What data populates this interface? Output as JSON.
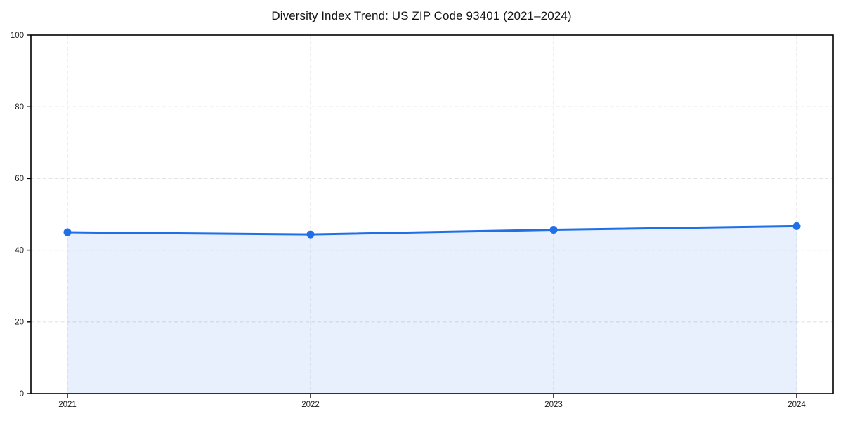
{
  "title": "Diversity Index Trend: US ZIP Code 93401 (2021–2024)",
  "chart_data": {
    "type": "line",
    "title": "Diversity Index Trend: US ZIP Code 93401 (2021–2024)",
    "x": [
      "2021",
      "2022",
      "2023",
      "2024"
    ],
    "values": [
      45.0,
      44.4,
      45.7,
      46.7
    ],
    "xlabel": "",
    "ylabel": "",
    "ylim": [
      0,
      100
    ],
    "yticks": [
      0,
      20,
      40,
      60,
      80,
      100
    ],
    "grid": "dashed",
    "legend": "none",
    "area_fill": true,
    "markers": true,
    "colors": {
      "line": "#1f6fe8",
      "fill": "#1f6fe8",
      "fill_opacity": 0.1,
      "grid": "#e3e3e3",
      "axis": "#000000",
      "tick_text": "#1a1a1a",
      "background": "#ffffff"
    }
  }
}
